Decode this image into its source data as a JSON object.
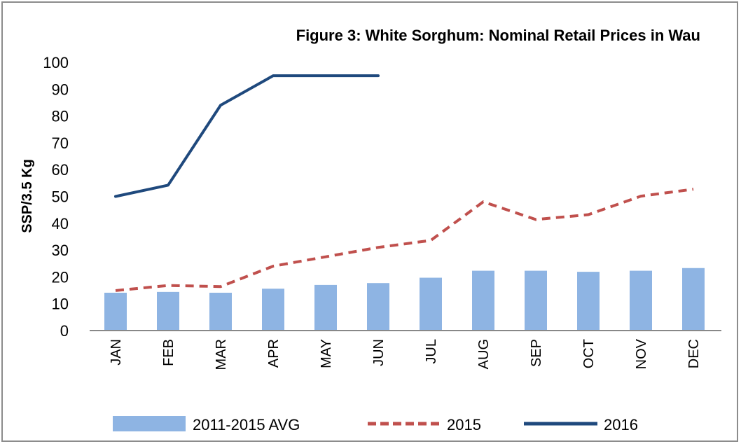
{
  "chart_data": {
    "type": "bar+line",
    "title": "Figure 3: White Sorghum: Nominal Retail Prices in Wau",
    "xlabel": "",
    "ylabel": "SSP/3.5 Kg",
    "ylim": [
      0,
      100
    ],
    "yticks": [
      "0",
      "10",
      "20",
      "30",
      "40",
      "50",
      "60",
      "70",
      "80",
      "90",
      "100"
    ],
    "grid": false,
    "legend_position": "bottom",
    "categories": [
      "JAN",
      "FEB",
      "MAR",
      "APR",
      "MAY",
      "JUN",
      "JUL",
      "AUG",
      "SEP",
      "OCT",
      "NOV",
      "DEC"
    ],
    "series": [
      {
        "name": "2011-2015 AVG",
        "type": "bar",
        "color": "#8EB4E3",
        "values": [
          14.1,
          14.4,
          14.1,
          15.6,
          17.0,
          17.7,
          19.7,
          22.3,
          22.3,
          21.9,
          22.3,
          23.3
        ]
      },
      {
        "name": "2015",
        "type": "line",
        "style": "dashed",
        "color": "#C0504D",
        "values": [
          14.9,
          16.8,
          16.4,
          24.0,
          27.5,
          31.0,
          33.6,
          48.0,
          41.4,
          43.2,
          50.1,
          52.7
        ]
      },
      {
        "name": "2016",
        "type": "line",
        "style": "solid",
        "color": "#1F497D",
        "values": [
          50.0,
          54.2,
          84.0,
          95.0,
          95.0,
          95.0,
          null,
          null,
          null,
          null,
          null,
          null
        ]
      }
    ]
  }
}
